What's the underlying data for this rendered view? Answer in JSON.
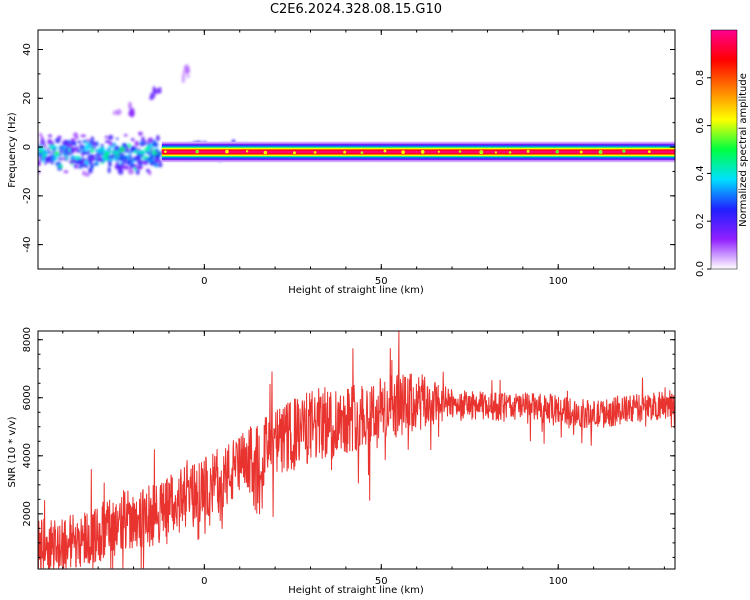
{
  "figure": {
    "title": "C2E6.2024.328.08.15.G10"
  },
  "colors": {
    "snr_line": "#e8332f",
    "background": "#ffffff",
    "frame": "#000000"
  },
  "chart_data": [
    {
      "type": "heatmap",
      "name": "spectrogram",
      "xlabel": "Height of straight line (km)",
      "ylabel": "Frequency (Hz)",
      "xlim": [
        -47,
        133
      ],
      "ylim": [
        -50,
        48
      ],
      "xticks": [
        0,
        50,
        100
      ],
      "yticks": [
        -40,
        -20,
        0,
        20,
        40
      ],
      "colorbar": {
        "label": "Normalized spectral amplitude",
        "range": [
          0,
          1
        ],
        "ticks": [
          "0.0",
          "0.2",
          "0.4",
          "0.6",
          "0.8"
        ],
        "tick_values": [
          0.0,
          0.2,
          0.4,
          0.6,
          0.8
        ],
        "colormap": [
          "#ffffff",
          "#9020ff",
          "#2020ff",
          "#00e0ff",
          "#00ff40",
          "#ffff00",
          "#ff8000",
          "#ff0000",
          "#ff0090"
        ]
      },
      "features": [
        {
          "x": [
            -12,
            133
          ],
          "center_freq": -2,
          "amplitude": 0.95
        },
        {
          "x": [
            -47,
            -12
          ],
          "center_freq": -3,
          "amplitude": 0.3
        },
        {
          "x": [
            -5,
            12
          ],
          "center_freq": -2,
          "amplitude": 0.45
        },
        {
          "x": [
            105,
            133
          ],
          "center_freq": -2,
          "amplitude": 0.15
        },
        {
          "x": [
            -25,
            -20
          ],
          "center_freq": 15,
          "amplitude": 0.12
        },
        {
          "x": [
            -15,
            -12
          ],
          "center_freq": 22,
          "amplitude": 0.15
        },
        {
          "x": [
            -6,
            -4
          ],
          "center_freq": 30,
          "amplitude": 0.08
        }
      ]
    },
    {
      "type": "line",
      "name": "snr",
      "xlabel": "Height of straight line (km)",
      "ylabel": "SNR (10 * v/v)",
      "xlim": [
        -47,
        133
      ],
      "ylim": [
        100,
        8300
      ],
      "xticks": [
        0,
        50,
        100
      ],
      "yticks": [
        2000,
        4000,
        6000,
        8000
      ],
      "series": [
        {
          "trend": {
            "x": [
              -47,
              -40,
              -30,
              -20,
              -15,
              -10,
              0,
              10,
              20,
              30,
              40,
              50,
              60,
              70,
              80,
              90,
              100,
              110,
              120,
              133
            ],
            "y": [
              900,
              1000,
              1300,
              1900,
              1900,
              2300,
              2800,
              3600,
              4400,
              5000,
              5300,
              5600,
              5800,
              5800,
              5700,
              5700,
              5600,
              5400,
              5600,
              5800
            ]
          },
          "noise_amplitude": {
            "x": [
              -47,
              -20,
              0,
              30,
              60,
              70,
              133
            ],
            "y": [
              900,
              1100,
              1100,
              1300,
              1100,
              500,
              500
            ]
          },
          "peaks": [
            {
              "x": 42,
              "y": 7700
            },
            {
              "x": 55,
              "y": 8300
            },
            {
              "x": 53,
              "y": 7300
            }
          ]
        }
      ]
    }
  ]
}
